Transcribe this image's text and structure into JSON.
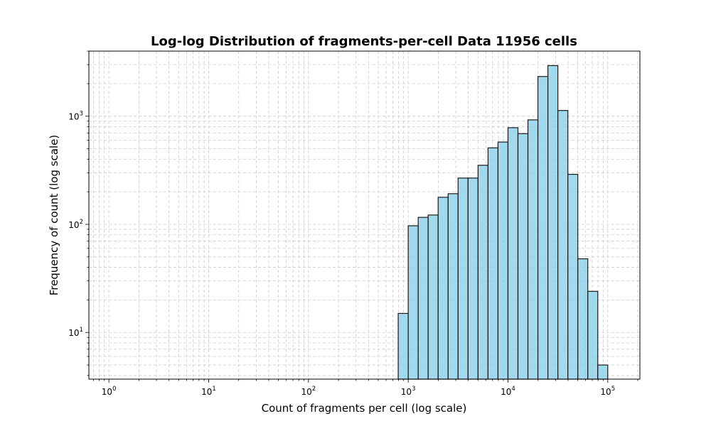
{
  "chart_data": {
    "type": "bar",
    "title": "Log-log Distribution of fragments-per-cell Data 11956 cells",
    "xlabel": "Count of fragments per cell (log scale)",
    "ylabel": "Frequency of count (log scale)",
    "x_scale": "log",
    "y_scale": "log",
    "xlim": [
      0.63,
      210000
    ],
    "ylim": [
      3.7,
      4000
    ],
    "grid": true,
    "x_ticks": [
      {
        "base": "10",
        "exp": "0",
        "value": 1
      },
      {
        "base": "10",
        "exp": "1",
        "value": 10
      },
      {
        "base": "10",
        "exp": "2",
        "value": 100
      },
      {
        "base": "10",
        "exp": "3",
        "value": 1000
      },
      {
        "base": "10",
        "exp": "4",
        "value": 10000
      },
      {
        "base": "10",
        "exp": "5",
        "value": 100000
      }
    ],
    "y_ticks": [
      {
        "base": "10",
        "exp": "1",
        "value": 10
      },
      {
        "base": "10",
        "exp": "2",
        "value": 100
      },
      {
        "base": "10",
        "exp": "3",
        "value": 1000
      }
    ],
    "bar_color": "#87ceeb",
    "edge_color": "#1a1a1a",
    "bins": [
      {
        "x0": 794,
        "x1": 1000,
        "count": 15
      },
      {
        "x0": 1000,
        "x1": 1259,
        "count": 97
      },
      {
        "x0": 1259,
        "x1": 1585,
        "count": 116
      },
      {
        "x0": 1585,
        "x1": 1995,
        "count": 122
      },
      {
        "x0": 1995,
        "x1": 2512,
        "count": 178
      },
      {
        "x0": 2512,
        "x1": 3162,
        "count": 192
      },
      {
        "x0": 3162,
        "x1": 3981,
        "count": 268
      },
      {
        "x0": 3981,
        "x1": 5012,
        "count": 268
      },
      {
        "x0": 5012,
        "x1": 6310,
        "count": 352
      },
      {
        "x0": 6310,
        "x1": 7943,
        "count": 510
      },
      {
        "x0": 7943,
        "x1": 10000,
        "count": 577
      },
      {
        "x0": 10000,
        "x1": 12589,
        "count": 783
      },
      {
        "x0": 12589,
        "x1": 15849,
        "count": 690
      },
      {
        "x0": 15849,
        "x1": 19953,
        "count": 925
      },
      {
        "x0": 19953,
        "x1": 25119,
        "count": 2330
      },
      {
        "x0": 25119,
        "x1": 31623,
        "count": 2940
      },
      {
        "x0": 31623,
        "x1": 39811,
        "count": 1130
      },
      {
        "x0": 39811,
        "x1": 50119,
        "count": 290
      },
      {
        "x0": 50119,
        "x1": 63096,
        "count": 48
      },
      {
        "x0": 63096,
        "x1": 79433,
        "count": 24
      },
      {
        "x0": 79433,
        "x1": 100000,
        "count": 5
      }
    ]
  }
}
